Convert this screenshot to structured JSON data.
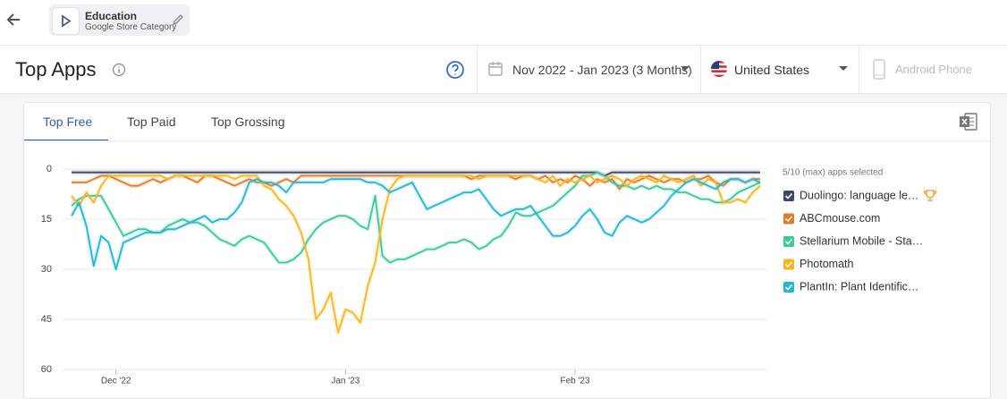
{
  "header": {
    "category_name": "Education",
    "category_subtitle": "Google Store Category"
  },
  "toolbar": {
    "title": "Top Apps",
    "date_range": "Nov 2022 - Jan 2023 (3 Months)",
    "country": "United States",
    "device": "Android Phone"
  },
  "tabs": [
    "Top Free",
    "Top Paid",
    "Top Grossing"
  ],
  "chart_data": {
    "type": "line",
    "legend_title": "5/10 (max) apps selected",
    "categories": [
      null,
      null,
      null,
      null,
      null,
      null,
      "Dec '22",
      null,
      null,
      null,
      null,
      null,
      null,
      null,
      null,
      null,
      null,
      null,
      null,
      null,
      null,
      null,
      null,
      null,
      null,
      null,
      null,
      null,
      null,
      null,
      null,
      null,
      null,
      null,
      null,
      null,
      null,
      "Jan '23",
      null,
      null,
      null,
      null,
      null,
      null,
      null,
      null,
      null,
      null,
      null,
      null,
      null,
      null,
      null,
      null,
      null,
      null,
      null,
      null,
      null,
      null,
      null,
      null,
      null,
      null,
      null,
      null,
      null,
      null,
      "Feb '23",
      null,
      null,
      null,
      null,
      null,
      null,
      null,
      null,
      null,
      null,
      null,
      null,
      null,
      null,
      null,
      null,
      null,
      null,
      null,
      null,
      null,
      null,
      null,
      null,
      null
    ],
    "ylim": [
      60,
      0
    ],
    "yticks": [
      0,
      15,
      30,
      45,
      60
    ],
    "grid": true,
    "series": [
      {
        "name": "Duolingo: language le…",
        "color": "#3b4a6b",
        "values": [
          1,
          1,
          1,
          1,
          1,
          1,
          1,
          1,
          1,
          1,
          1,
          1,
          1,
          1,
          1,
          1,
          1,
          1,
          1,
          1,
          1,
          1,
          1,
          1,
          1,
          1,
          1,
          1,
          1,
          1,
          1,
          1,
          1,
          1,
          1,
          1,
          1,
          1,
          1,
          1,
          1,
          1,
          1,
          1,
          1,
          1,
          1,
          1,
          1,
          1,
          1,
          1,
          1,
          1,
          1,
          1,
          1,
          1,
          1,
          1,
          1,
          1,
          1,
          1,
          1,
          1,
          1,
          1,
          1,
          1,
          1,
          1,
          2,
          1,
          1,
          1,
          1,
          1,
          1,
          1,
          1,
          1,
          1,
          1,
          1,
          1,
          1,
          1,
          1,
          1,
          1,
          1,
          1,
          1
        ]
      },
      {
        "name": "ABCmouse.com",
        "color": "#e07c2a",
        "values": [
          4,
          4,
          4,
          3,
          2,
          2,
          3,
          4,
          5,
          5,
          4,
          3,
          4,
          3,
          2,
          2,
          3,
          4,
          2,
          2,
          3,
          4,
          5,
          4,
          3,
          4,
          4,
          5,
          4,
          3,
          4,
          2,
          2,
          2,
          2,
          2,
          2,
          2,
          2,
          2,
          2,
          2,
          2,
          2,
          2,
          2,
          2,
          2,
          2,
          2,
          2,
          2,
          2,
          2,
          3,
          2,
          2,
          2,
          2,
          2,
          3,
          2,
          2,
          3,
          2,
          4,
          3,
          4,
          2,
          3,
          5,
          3,
          4,
          3,
          6,
          3,
          4,
          3,
          2,
          3,
          4,
          3,
          3,
          4,
          3,
          3,
          2,
          4,
          5,
          3,
          3,
          4,
          3,
          3
        ]
      },
      {
        "name": "Stellarium Mobile - Sta…",
        "color": "#3cc79d",
        "values": [
          11,
          9,
          8,
          8,
          8,
          12,
          16,
          20,
          19,
          18,
          18,
          19,
          19,
          17,
          16,
          15,
          16,
          16,
          17,
          19,
          21,
          22,
          23,
          21,
          20,
          21,
          22,
          25,
          28,
          28,
          27,
          25,
          21,
          18,
          16,
          15,
          14,
          14,
          15,
          17,
          18,
          8,
          26,
          28,
          27,
          27,
          26,
          25,
          24,
          24,
          23,
          22,
          22,
          21,
          22,
          24,
          23,
          21,
          20,
          17,
          13,
          14,
          14,
          13,
          12,
          11,
          9,
          7,
          5,
          2,
          2,
          1,
          2,
          4,
          5,
          5,
          6,
          5,
          6,
          5,
          6,
          6,
          7,
          7,
          8,
          9,
          9,
          10,
          10,
          9,
          7,
          6,
          5,
          4
        ]
      },
      {
        "name": "Photomath",
        "color": "#f5b820",
        "values": [
          8,
          11,
          7,
          10,
          5,
          2,
          2,
          2,
          2,
          2,
          2,
          2,
          2,
          3,
          2,
          2,
          2,
          2,
          2,
          2,
          2,
          2,
          3,
          2,
          2,
          2,
          5,
          6,
          9,
          11,
          14,
          19,
          27,
          45,
          42,
          37,
          49,
          42,
          43,
          46,
          35,
          28,
          15,
          6,
          3,
          2,
          2,
          2,
          2,
          2,
          2,
          2,
          2,
          2,
          2,
          3,
          2,
          2,
          2,
          2,
          2,
          2,
          2,
          3,
          4,
          2,
          5,
          3,
          4,
          3,
          2,
          4,
          3,
          2,
          3,
          5,
          3,
          2,
          3,
          4,
          2,
          3,
          4,
          3,
          2,
          5,
          3,
          4,
          10,
          10,
          9,
          10,
          7,
          5
        ]
      },
      {
        "name": "PlantIn: Plant Identific…",
        "color": "#27b5d0",
        "values": [
          14,
          10,
          17,
          29,
          20,
          22,
          30,
          22,
          21,
          20,
          19,
          19,
          19,
          18,
          18,
          17,
          16,
          15,
          14,
          16,
          15,
          15,
          13,
          10,
          4,
          3,
          4,
          4,
          5,
          7,
          4,
          4,
          4,
          4,
          4,
          3,
          3,
          3,
          3,
          3,
          4,
          4,
          5,
          7,
          6,
          5,
          4,
          8,
          12,
          11,
          10,
          9,
          8,
          7,
          7,
          6,
          9,
          12,
          14,
          13,
          12,
          12,
          11,
          14,
          17,
          20,
          20,
          19,
          17,
          14,
          12,
          15,
          19,
          20,
          16,
          14,
          15,
          16,
          15,
          13,
          11,
          8,
          6,
          4,
          3,
          4,
          5,
          6,
          4,
          3,
          3,
          4,
          3,
          4
        ]
      }
    ]
  }
}
